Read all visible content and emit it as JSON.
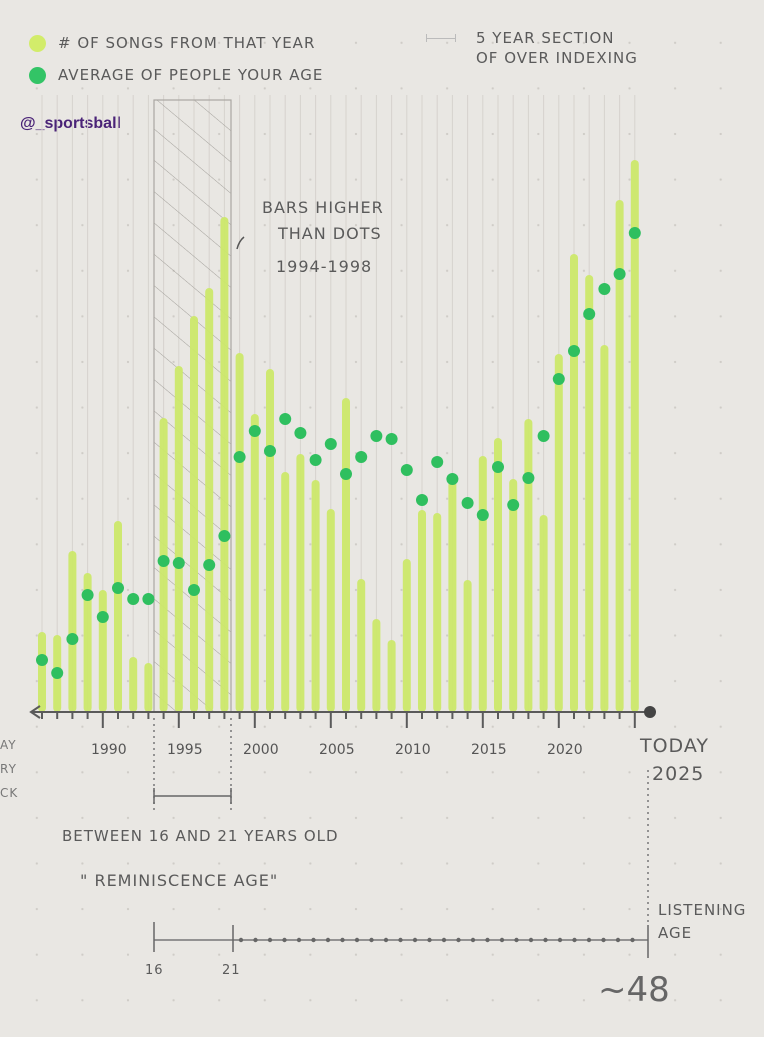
{
  "watermark": "@_sportsball",
  "legend": {
    "items": [
      {
        "label": "# OF SONGS FROM THAT YEAR",
        "color": "#cce86a"
      },
      {
        "label": "AVERAGE OF PEOPLE YOUR AGE",
        "color": "#2fbf5f"
      }
    ],
    "section_key": {
      "line1": "5 YEAR SECTION",
      "line2": "OF OVER INDEXING"
    }
  },
  "annotations": {
    "bars_higher": {
      "line1": "BARS HIGHER",
      "line2": "THAN DOTS",
      "line3": "1994-1998"
    },
    "today": {
      "line1": "TODAY",
      "line2": "2025"
    },
    "between": "BETWEEN 16 AND 21 YEARS OLD",
    "reminiscence": "\" REMINISCENCE AGE\"",
    "age_scale": {
      "start": "16",
      "end": "21",
      "label_line1": "LISTENING",
      "label_line2": "AGE",
      "current": "~48"
    },
    "cropped_left_text": [
      "AY",
      "RY",
      "CK"
    ]
  },
  "colors": {
    "bar": "#cce86a",
    "dot": "#2fbf5f",
    "axis": "#555555",
    "hatch": "#9a9893"
  },
  "chart_data": {
    "type": "bar",
    "title": "",
    "xlabel": "",
    "ylabel": "",
    "x_tick_labels": [
      "1990",
      "1995",
      "2000",
      "2005",
      "2010",
      "2015",
      "2020"
    ],
    "categories": [
      1986,
      1987,
      1988,
      1989,
      1990,
      1991,
      1992,
      1993,
      1994,
      1995,
      1996,
      1997,
      1998,
      1999,
      2000,
      2001,
      2002,
      2003,
      2004,
      2005,
      2006,
      2007,
      2008,
      2009,
      2010,
      2011,
      2012,
      2013,
      2014,
      2015,
      2016,
      2017,
      2018,
      2019,
      2020,
      2021,
      2022,
      2023,
      2024,
      2025
    ],
    "series": [
      {
        "name": "# of songs from that year",
        "type": "bar",
        "values": [
          80,
          77,
          161,
          139,
          122,
          191,
          55,
          49,
          294,
          346,
          396,
          424,
          495,
          359,
          298,
          343,
          240,
          258,
          232,
          203,
          314,
          133,
          93,
          72,
          153,
          202,
          199,
          231,
          132,
          256,
          274,
          233,
          293,
          197,
          358,
          458,
          437,
          367,
          512,
          552
        ]
      },
      {
        "name": "Average of people your age",
        "type": "scatter",
        "values": [
          52,
          39,
          73,
          117,
          95,
          124,
          113,
          113,
          151,
          149,
          122,
          147,
          176,
          255,
          281,
          261,
          293,
          279,
          252,
          268,
          238,
          255,
          276,
          273,
          242,
          212,
          250,
          233,
          209,
          197,
          245,
          207,
          234,
          276,
          333,
          361,
          398,
          423,
          438,
          479
        ]
      }
    ],
    "highlight_region": {
      "start": 1994,
      "end": 1998,
      "label": "5 year section of over indexing"
    },
    "ylim": [
      0,
      560
    ],
    "grid": false,
    "legend_position": "top-left",
    "units_note": "values are relative bar/dot heights (no y-axis shown)"
  }
}
